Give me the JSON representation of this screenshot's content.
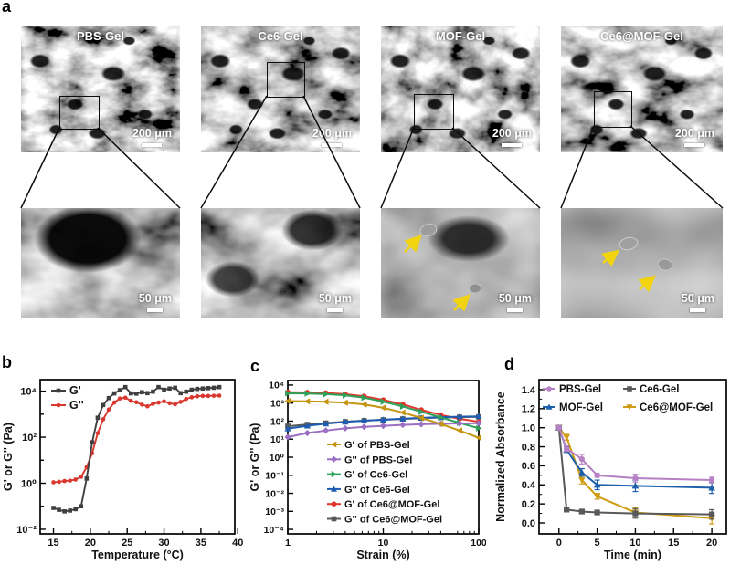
{
  "figure": {
    "panels": {
      "a": {
        "label": "a",
        "arrow_color": "#f2d40e",
        "top_row": [
          {
            "label": "PBS-Gel",
            "scale_bar": "200 μm"
          },
          {
            "label": "Ce6-Gel",
            "scale_bar": "200 μm"
          },
          {
            "label": "MOF-Gel",
            "scale_bar": "200 μm"
          },
          {
            "label": "Ce6@MOF-Gel",
            "scale_bar": "200 μm"
          }
        ],
        "bottom_row": [
          {
            "scale_bar": "50 μm"
          },
          {
            "scale_bar": "50 μm"
          },
          {
            "scale_bar": "50 μm"
          },
          {
            "scale_bar": "50 μm"
          }
        ]
      },
      "b": {
        "label": "b"
      },
      "c": {
        "label": "c"
      },
      "d": {
        "label": "d"
      }
    }
  },
  "chart_data": [
    {
      "id": "b",
      "type": "line",
      "xlabel": "Temperature (°C)",
      "ylabel": "G' or G'' (Pa)",
      "x_scale": "linear",
      "x_range": [
        13.2,
        39.6
      ],
      "x_ticks": [
        {
          "v": 15,
          "label": "15"
        },
        {
          "v": 20,
          "label": "20"
        },
        {
          "v": 25,
          "label": "25"
        },
        {
          "v": 30,
          "label": "30"
        },
        {
          "v": 35,
          "label": "35"
        },
        {
          "v": 40,
          "label": "40"
        }
      ],
      "x_minor": [
        17.5,
        22.5,
        27.5,
        32.5,
        37.5
      ],
      "y_scale": "log",
      "y_range": [
        -2.2,
        4.5
      ],
      "y_ticks": [
        {
          "v": 0.01,
          "label": "10⁻²"
        },
        {
          "v": 0.1,
          "label": ""
        },
        {
          "v": 1,
          "label": "10⁰"
        },
        {
          "v": 10,
          "label": ""
        },
        {
          "v": 100,
          "label": "10²"
        },
        {
          "v": 1000,
          "label": ""
        },
        {
          "v": 10000,
          "label": "10⁴"
        }
      ],
      "x": [
        15,
        15.75,
        16.5,
        17.25,
        18,
        18.75,
        19.5,
        20.25,
        21,
        21.75,
        22.5,
        23.25,
        24,
        24.75,
        25.5,
        26.25,
        27,
        27.75,
        28.5,
        29.25,
        30,
        30.75,
        31.5,
        32.25,
        33,
        33.75,
        34.5,
        35.25,
        36,
        36.75,
        37.5
      ],
      "series": [
        {
          "name": "G'",
          "color": "#3f3f3f",
          "marker": "square",
          "y": [
            0.085,
            0.07,
            0.06,
            0.065,
            0.075,
            0.1,
            1.6,
            60,
            700,
            2500,
            5000,
            8000,
            11000,
            15000,
            8000,
            7800,
            9000,
            8200,
            9500,
            15000,
            11500,
            13000,
            14000,
            8200,
            9500,
            11500,
            12500,
            13000,
            13500,
            14000,
            15000
          ]
        },
        {
          "name": "G''",
          "color": "#d9372e",
          "marker": "circle",
          "y": [
            1.1,
            1.15,
            1.25,
            1.3,
            1.45,
            1.9,
            5,
            20,
            150,
            600,
            1600,
            3200,
            4800,
            5200,
            3800,
            3300,
            2600,
            2200,
            2800,
            3200,
            3600,
            3000,
            2700,
            3400,
            4600,
            5400,
            6000,
            6200,
            6200,
            6300,
            6400
          ]
        }
      ],
      "legend": {
        "position": "top-left"
      }
    },
    {
      "id": "c",
      "type": "line",
      "xlabel": "Strain (%)",
      "ylabel": "G' or G'' (Pa)",
      "x_scale": "log",
      "x_range": [
        0,
        2
      ],
      "x_ticks": [
        {
          "v": 1,
          "label": "1"
        },
        {
          "v": 10,
          "label": "10"
        },
        {
          "v": 100,
          "label": "100"
        }
      ],
      "x_minor": [
        2,
        3,
        4,
        5,
        6,
        7,
        8,
        9,
        20,
        30,
        40,
        50,
        60,
        70,
        80,
        90
      ],
      "y_scale": "log",
      "y_range": [
        -4.25,
        4.25
      ],
      "y_ticks": [
        {
          "v": 10000,
          "label": "10⁴"
        },
        {
          "v": 1000,
          "label": "10³"
        },
        {
          "v": 100,
          "label": "10²"
        },
        {
          "v": 10,
          "label": "10¹"
        },
        {
          "v": 1,
          "label": "10⁰"
        },
        {
          "v": 0.1,
          "label": "10⁻¹"
        },
        {
          "v": 0.01,
          "label": "10⁻²"
        },
        {
          "v": 0.001,
          "label": "10⁻³"
        },
        {
          "v": 0.0001,
          "label": "10⁻⁴"
        }
      ],
      "x": [
        1,
        1.6,
        2.5,
        4,
        6.3,
        10,
        16,
        25,
        40,
        63,
        100
      ],
      "series": [
        {
          "name": "G' of PBS-Gel",
          "color": "#c4950e",
          "marker": "triangle-left",
          "y": [
            1300,
            1250,
            1180,
            1050,
            850,
            550,
            300,
            150,
            70,
            30,
            12
          ]
        },
        {
          "name": "G'' of PBS-Gel",
          "color": "#9a6fc4",
          "marker": "diamond",
          "y": [
            13,
            22,
            30,
            40,
            48,
            55,
            62,
            67,
            71,
            74,
            77
          ]
        },
        {
          "name": "G' of Ce6-Gel",
          "color": "#2da05a",
          "marker": "triangle-right",
          "y": [
            3500,
            3400,
            3150,
            2700,
            2000,
            1200,
            650,
            330,
            160,
            80,
            40
          ]
        },
        {
          "name": "G'' of Ce6-Gel",
          "color": "#1d5cb0",
          "marker": "triangle-up",
          "y": [
            38,
            55,
            72,
            90,
            105,
            120,
            135,
            152,
            165,
            176,
            185
          ]
        },
        {
          "name": "G' of Ce6@MOF-Gel",
          "color": "#e0352b",
          "marker": "circle",
          "y": [
            4000,
            3900,
            3650,
            3150,
            2400,
            1500,
            850,
            420,
            220,
            135,
            92
          ]
        },
        {
          "name": "G'' of Ce6@MOF-Gel",
          "color": "#58595b",
          "marker": "square",
          "y": [
            52,
            65,
            78,
            93,
            106,
            118,
            132,
            146,
            158,
            167,
            174
          ]
        }
      ],
      "legend": {
        "position": "bottom-center",
        "text_colored": true
      }
    },
    {
      "id": "d",
      "type": "line",
      "xlabel": "Time (min)",
      "ylabel": "Normalized Absorbance",
      "x_scale": "linear",
      "x_range": [
        -2.6,
        21.9
      ],
      "x_ticks": [
        {
          "v": 0,
          "label": "0"
        },
        {
          "v": 5,
          "label": "5"
        },
        {
          "v": 10,
          "label": "10"
        },
        {
          "v": 15,
          "label": "15"
        },
        {
          "v": 20,
          "label": "20"
        }
      ],
      "x_minor": [
        2.5,
        7.5,
        12.5,
        17.5
      ],
      "y_scale": "linear",
      "y_range": [
        -0.115,
        1.505
      ],
      "y_ticks": [
        {
          "v": 0,
          "label": "0.0"
        },
        {
          "v": 0.2,
          "label": "0.2"
        },
        {
          "v": 0.4,
          "label": "0.4"
        },
        {
          "v": 0.6,
          "label": "0.6"
        },
        {
          "v": 0.8,
          "label": "0.8"
        },
        {
          "v": 1,
          "label": "1.0"
        },
        {
          "v": 1.2,
          "label": "1.2"
        },
        {
          "v": 1.4,
          "label": "1.4"
        }
      ],
      "y_minor": [
        0.1,
        0.3,
        0.5,
        0.7,
        0.9,
        1.1,
        1.3
      ],
      "x": [
        0,
        1,
        3,
        5,
        10,
        20
      ],
      "series": [
        {
          "name": "PBS-Gel",
          "color": "#b77fc4",
          "marker": "circle",
          "y": [
            1.0,
            0.78,
            0.67,
            0.5,
            0.47,
            0.45
          ],
          "yerr": [
            0.02,
            0.03,
            0.05,
            0.02,
            0.04,
            0.03
          ]
        },
        {
          "name": "Ce6-Gel",
          "color": "#58595b",
          "marker": "square",
          "y": [
            1.0,
            0.14,
            0.12,
            0.11,
            0.1,
            0.09
          ],
          "yerr": [
            0.02,
            0.02,
            0.02,
            0.02,
            0.05,
            0.05
          ]
        },
        {
          "name": "MOF-Gel",
          "color": "#1d5fa8",
          "marker": "triangle-up",
          "y": [
            1.0,
            0.77,
            0.53,
            0.4,
            0.39,
            0.37
          ],
          "yerr": [
            0.02,
            0.03,
            0.04,
            0.05,
            0.06,
            0.06
          ]
        },
        {
          "name": "Ce6@MOF-Gel",
          "color": "#cf9c13",
          "marker": "triangle-down",
          "y": [
            1.0,
            0.9,
            0.45,
            0.28,
            0.11,
            0.05
          ],
          "yerr": [
            0.02,
            0.03,
            0.04,
            0.03,
            0.05,
            0.06
          ]
        }
      ],
      "legend": {
        "position": "top",
        "columns": 2
      }
    }
  ]
}
